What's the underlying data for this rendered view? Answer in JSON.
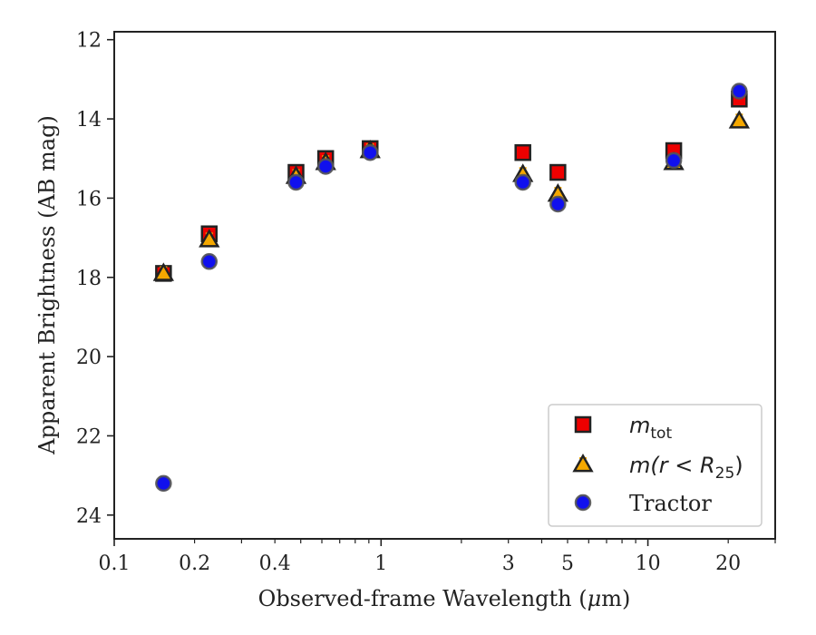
{
  "chart_data": {
    "type": "scatter",
    "xlabel_pre": "Observed-frame Wavelength (",
    "xlabel_mu": "μ",
    "xlabel_post": "m)",
    "ylabel": "Apparent Brightness (AB mag)",
    "xscale": "log",
    "xlim": [
      0.1,
      30
    ],
    "ylim": [
      24.6,
      11.8
    ],
    "y_inverted": true,
    "grid": false,
    "legend_position": "lower-right",
    "x_tick_labels": [
      {
        "value": 0.1,
        "label": "0.1"
      },
      {
        "value": 0.2,
        "label": "0.2"
      },
      {
        "value": 0.4,
        "label": "0.4"
      },
      {
        "value": 1,
        "label": "1"
      },
      {
        "value": 3,
        "label": "3"
      },
      {
        "value": 5,
        "label": "5"
      },
      {
        "value": 10,
        "label": "10"
      },
      {
        "value": 20,
        "label": "20"
      }
    ],
    "y_ticks": [
      12,
      14,
      16,
      18,
      20,
      22,
      24
    ],
    "series": [
      {
        "name": "m_tot",
        "legend_main": "m",
        "legend_sub": "tot",
        "marker": "square",
        "color": "#ee0000",
        "error_color": "#ee0000",
        "points": [
          {
            "x": 0.153,
            "y": 17.9
          },
          {
            "x": 0.227,
            "y": 16.9
          },
          {
            "x": 0.48,
            "y": 15.35
          },
          {
            "x": 0.62,
            "y": 15.0
          },
          {
            "x": 0.91,
            "y": 14.75
          },
          {
            "x": 3.4,
            "y": 14.85
          },
          {
            "x": 4.6,
            "y": 15.35
          },
          {
            "x": 12.5,
            "y": 14.8
          },
          {
            "x": 22.0,
            "y": 13.5
          }
        ]
      },
      {
        "name": "m(r<R_25)",
        "legend_main": "m(r < R",
        "legend_sub": "25",
        "legend_end": ")",
        "marker": "triangle",
        "color": "#f5a800",
        "error_color": "#f5a800",
        "points": [
          {
            "x": 0.153,
            "y": 17.9
          },
          {
            "x": 0.227,
            "y": 17.05
          },
          {
            "x": 0.48,
            "y": 15.45
          },
          {
            "x": 0.62,
            "y": 15.1
          },
          {
            "x": 0.91,
            "y": 14.8
          },
          {
            "x": 3.4,
            "y": 15.4
          },
          {
            "x": 4.6,
            "y": 15.9
          },
          {
            "x": 12.5,
            "y": 15.1
          },
          {
            "x": 22.0,
            "y": 14.05
          }
        ]
      },
      {
        "name": "Tractor",
        "legend_main": "Tractor",
        "marker": "circle",
        "color": "#1010ee",
        "error_color": "#1010ee",
        "points": [
          {
            "x": 0.153,
            "y": 23.2
          },
          {
            "x": 0.227,
            "y": 17.6
          },
          {
            "x": 0.48,
            "y": 15.6
          },
          {
            "x": 0.62,
            "y": 15.2
          },
          {
            "x": 0.91,
            "y": 14.85
          },
          {
            "x": 3.4,
            "y": 15.6
          },
          {
            "x": 4.6,
            "y": 16.15
          },
          {
            "x": 12.5,
            "y": 15.05
          },
          {
            "x": 22.0,
            "y": 13.3
          }
        ]
      }
    ]
  }
}
